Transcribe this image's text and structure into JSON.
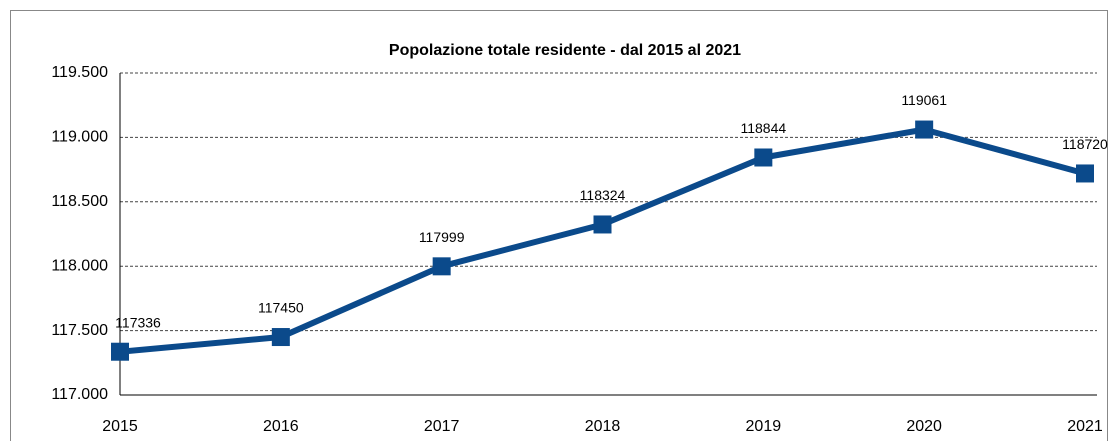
{
  "chart_data": {
    "type": "line",
    "title": "Popolazione totale residente - dal 2015 al 2021",
    "categories": [
      "2015",
      "2016",
      "2017",
      "2018",
      "2019",
      "2020",
      "2021"
    ],
    "series": [
      {
        "name": "Popolazione",
        "color": "#0b4a8b",
        "values": [
          117336,
          117450,
          117999,
          118324,
          118844,
          119061,
          118720
        ]
      }
    ],
    "ylim": [
      117000,
      119500
    ],
    "yticks": [
      {
        "value": 117000,
        "label": "117.000"
      },
      {
        "value": 117500,
        "label": "117.500"
      },
      {
        "value": 118000,
        "label": "118.000"
      },
      {
        "value": 118500,
        "label": "118.500"
      },
      {
        "value": 119000,
        "label": "119.000"
      },
      {
        "value": 119500,
        "label": "119.500"
      }
    ],
    "grid": true
  }
}
